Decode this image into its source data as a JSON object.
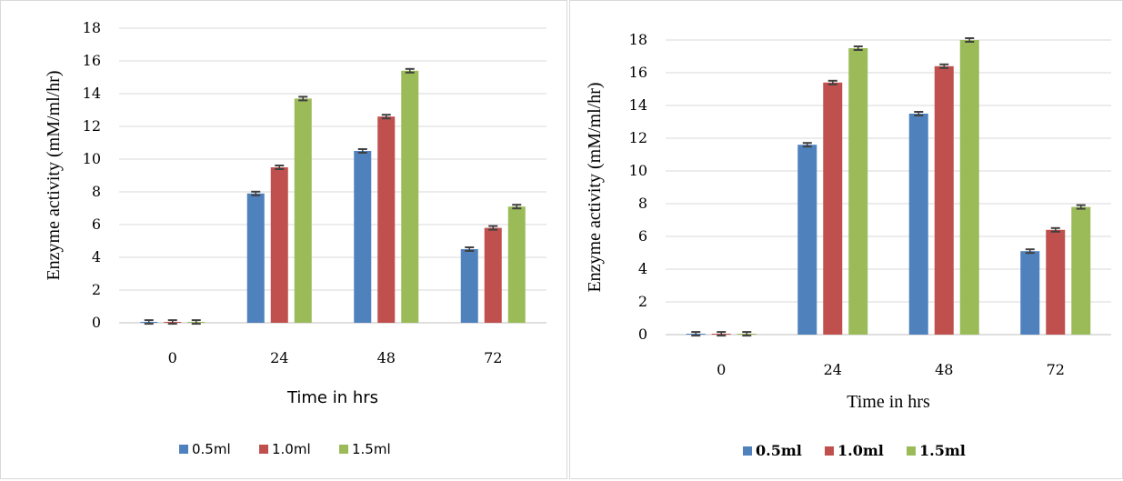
{
  "chart_data": [
    {
      "type": "bar",
      "xlabel": "Time in hrs",
      "ylabel": "Enzyme activity (mM/ml/hr)",
      "categories": [
        "0",
        "24",
        "48",
        "72"
      ],
      "ylim": [
        0,
        18
      ],
      "yticks": [
        "0",
        "2",
        "4",
        "6",
        "8",
        "10",
        "12",
        "14",
        "16",
        "18"
      ],
      "grid": true,
      "legend": "bottom",
      "error_bars": true,
      "series": [
        {
          "name": "0.5ml",
          "color": "#4F81BD",
          "values": [
            0.05,
            7.9,
            10.5,
            4.5
          ]
        },
        {
          "name": "1.0ml",
          "color": "#C0504D",
          "values": [
            0.05,
            9.5,
            12.6,
            5.8
          ]
        },
        {
          "name": "1.5ml",
          "color": "#9BBB59",
          "values": [
            0.05,
            13.7,
            15.4,
            7.1
          ]
        }
      ]
    },
    {
      "type": "bar",
      "xlabel": "Time in hrs",
      "ylabel": "Enzyme activity (mM/ml/hr)",
      "categories": [
        "0",
        "24",
        "48",
        "72"
      ],
      "ylim": [
        0,
        18
      ],
      "yticks": [
        "0",
        "2",
        "4",
        "6",
        "8",
        "10",
        "12",
        "14",
        "16",
        "18"
      ],
      "grid": true,
      "legend": "bottom",
      "error_bars": true,
      "series": [
        {
          "name": "0.5ml",
          "color": "#4F81BD",
          "values": [
            0.05,
            11.6,
            13.5,
            5.1
          ]
        },
        {
          "name": "1.0ml",
          "color": "#C0504D",
          "values": [
            0.05,
            15.4,
            16.4,
            6.4
          ]
        },
        {
          "name": "1.5ml",
          "color": "#9BBB59",
          "values": [
            0.05,
            17.5,
            18.0,
            7.8
          ]
        }
      ]
    }
  ]
}
